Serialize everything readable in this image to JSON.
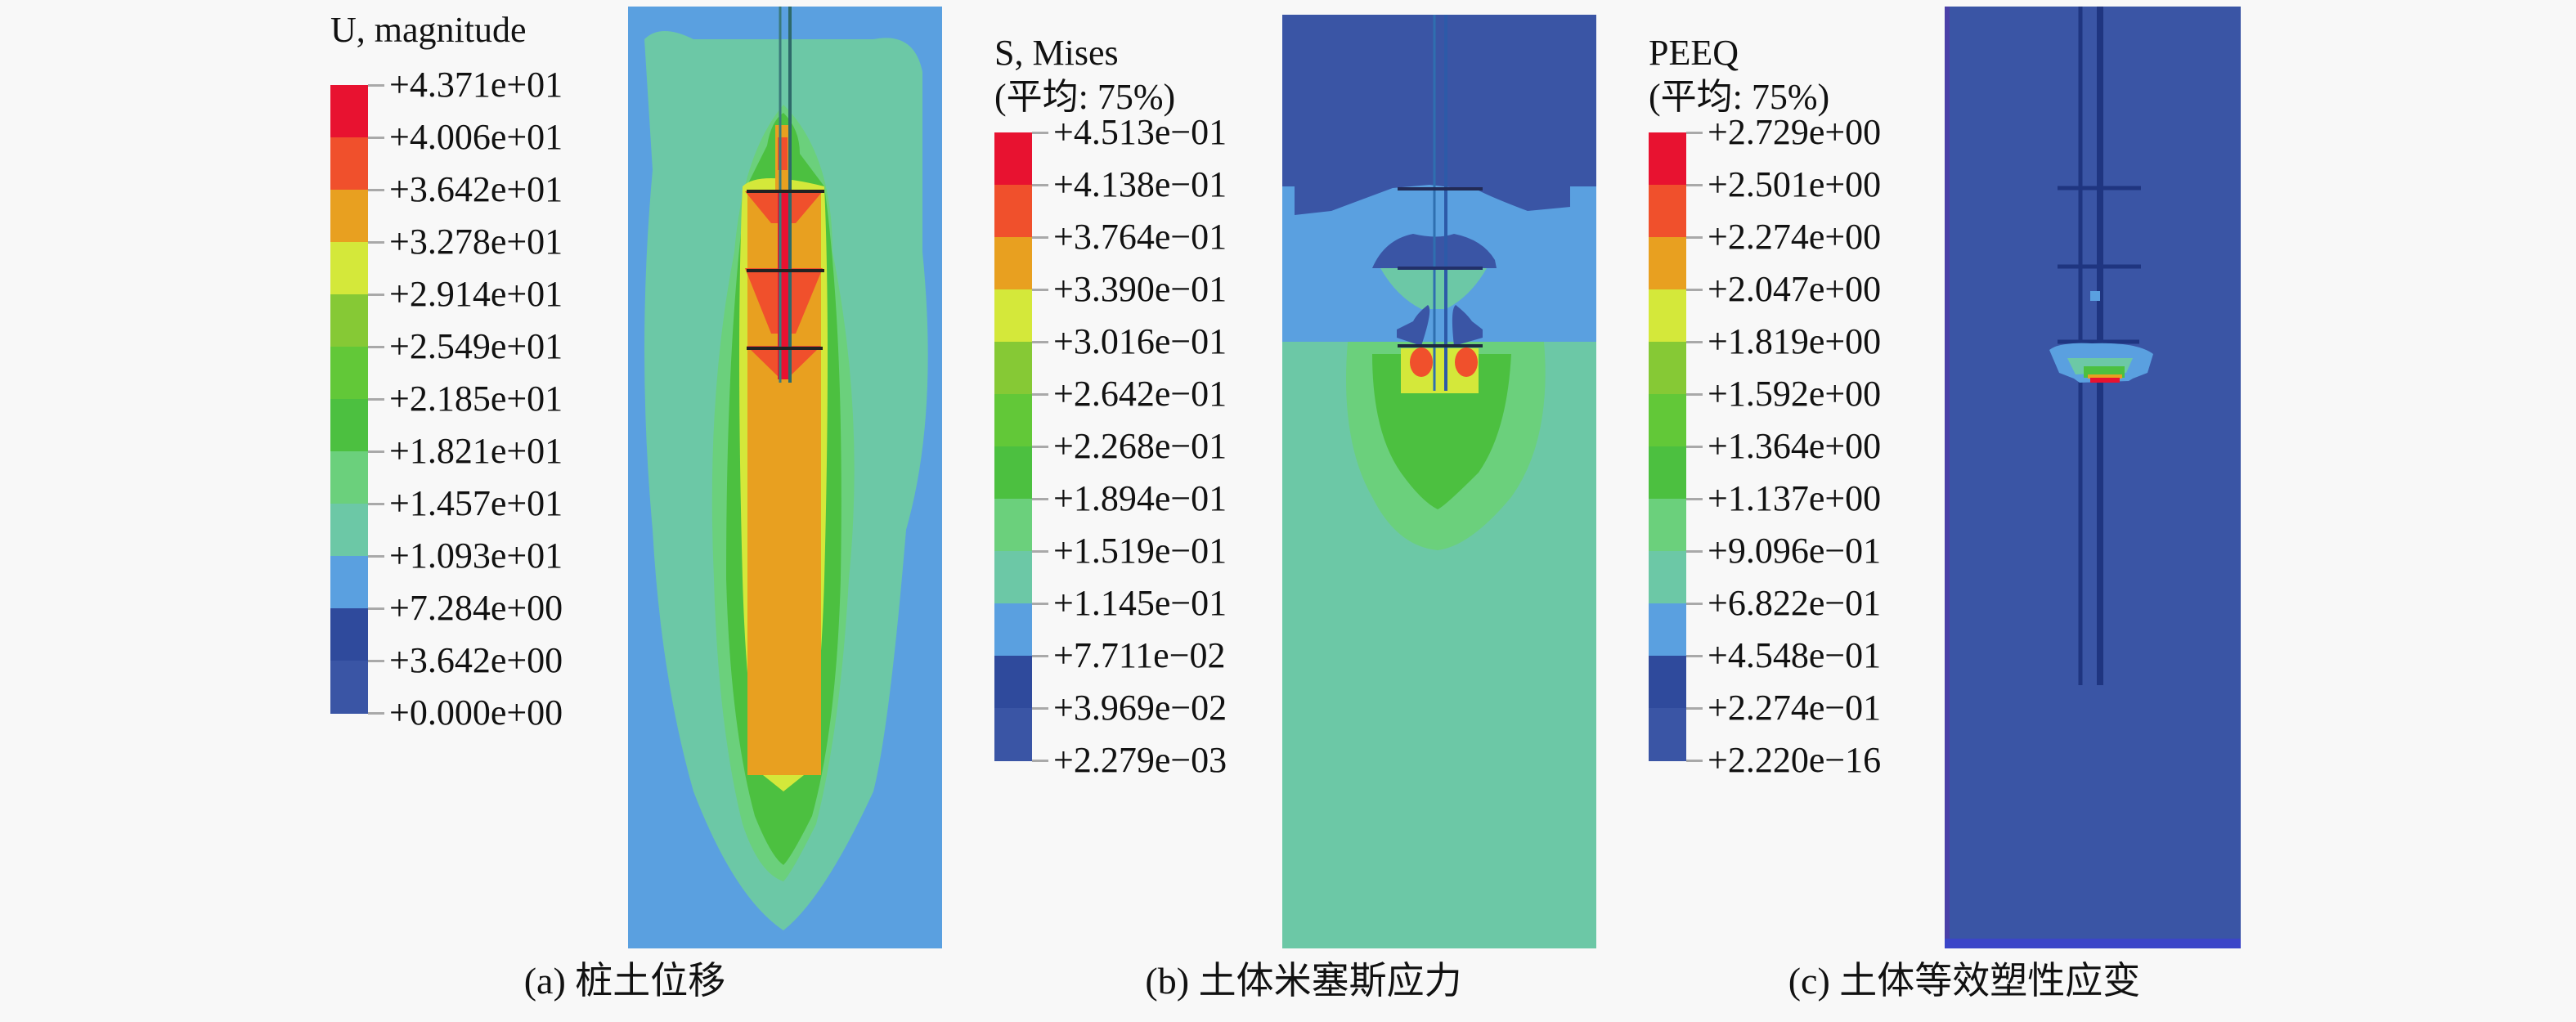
{
  "chart_data": [
    {
      "type": "heatmap",
      "id": "a",
      "title": "U, magnitude",
      "subtitle": "",
      "caption": "(a) 桩土位移",
      "legend_placement": "left",
      "colormap": [
        "#3a55a5",
        "#2f4a9c",
        "#5aa0e0",
        "#6cc8a6",
        "#6bd07c",
        "#4cc040",
        "#62c838",
        "#86c935",
        "#d4e83a",
        "#e8a020",
        "#f0502c",
        "#e81230"
      ],
      "tick_labels": [
        "+4.371e+01",
        "+4.006e+01",
        "+3.642e+01",
        "+3.278e+01",
        "+2.914e+01",
        "+2.549e+01",
        "+2.185e+01",
        "+1.821e+01",
        "+1.457e+01",
        "+1.093e+01",
        "+7.284e+00",
        "+3.642e+00",
        "+0.000e+00"
      ],
      "tick_values": [
        43.71,
        40.06,
        36.42,
        32.78,
        29.14,
        25.49,
        21.85,
        18.21,
        14.57,
        10.93,
        7.284,
        3.642,
        0.0
      ],
      "range": [
        0.0,
        43.71
      ],
      "description": "Displacement field concentrated along the pile with three disk bearing plates; maximum (red) beneath each plate, decaying outward through orange, green and teal to blue at the soil boundary."
    },
    {
      "type": "heatmap",
      "id": "b",
      "title": "S, Mises",
      "subtitle": "(平均: 75%)",
      "caption": "(b) 土体米塞斯应力",
      "legend_placement": "left",
      "colormap": [
        "#3a55a5",
        "#2f4a9c",
        "#5aa0e0",
        "#6cc8a6",
        "#6bd07c",
        "#4cc040",
        "#62c838",
        "#86c935",
        "#d4e83a",
        "#e8a020",
        "#f0502c",
        "#e81230"
      ],
      "tick_labels": [
        "+4.513e-01",
        "+4.138e-01",
        "+3.764e-01",
        "+3.390e-01",
        "+3.016e-01",
        "+2.642e-01",
        "+2.268e-01",
        "+1.894e-01",
        "+1.519e-01",
        "+1.145e-01",
        "+7.711e-02",
        "+3.969e-02",
        "+2.279e-03"
      ],
      "tick_values": [
        0.4513,
        0.4138,
        0.3764,
        0.339,
        0.3016,
        0.2642,
        0.2268,
        0.1894,
        0.1519,
        0.1145,
        0.07711,
        0.03969,
        0.002279
      ],
      "range": [
        0.002279,
        0.4513
      ],
      "description": "Upper soil layer low stress (dark blue); middle layer light blue with low-stress lobes above plates; bottom layer green with stress peaks (red) beneath the lowest plate."
    },
    {
      "type": "heatmap",
      "id": "c",
      "title": "PEEQ",
      "subtitle": "(平均: 75%)",
      "caption": "(c) 土体等效塑性应变",
      "legend_placement": "left",
      "colormap": [
        "#3a55a5",
        "#2f4a9c",
        "#5aa0e0",
        "#6cc8a6",
        "#6bd07c",
        "#4cc040",
        "#62c838",
        "#86c935",
        "#d4e83a",
        "#e8a020",
        "#f0502c",
        "#e81230"
      ],
      "tick_labels": [
        "+2.729e+00",
        "+2.501e+00",
        "+2.274e+00",
        "+2.047e+00",
        "+1.819e+00",
        "+1.592e+00",
        "+1.364e+00",
        "+1.137e+00",
        "+9.096e-01",
        "+6.822e-01",
        "+4.548e-01",
        "+2.274e-01",
        "+2.220e-16"
      ],
      "tick_values": [
        2.729,
        2.501,
        2.274,
        2.047,
        1.819,
        1.592,
        1.364,
        1.137,
        0.9096,
        0.6822,
        0.4548,
        0.2274,
        2.22e-16
      ],
      "range": [
        2.22e-16,
        2.729
      ],
      "description": "Plastic strain essentially zero (dark blue) everywhere except a small zone below the lowest bearing plate, peaking in red at its base."
    }
  ]
}
